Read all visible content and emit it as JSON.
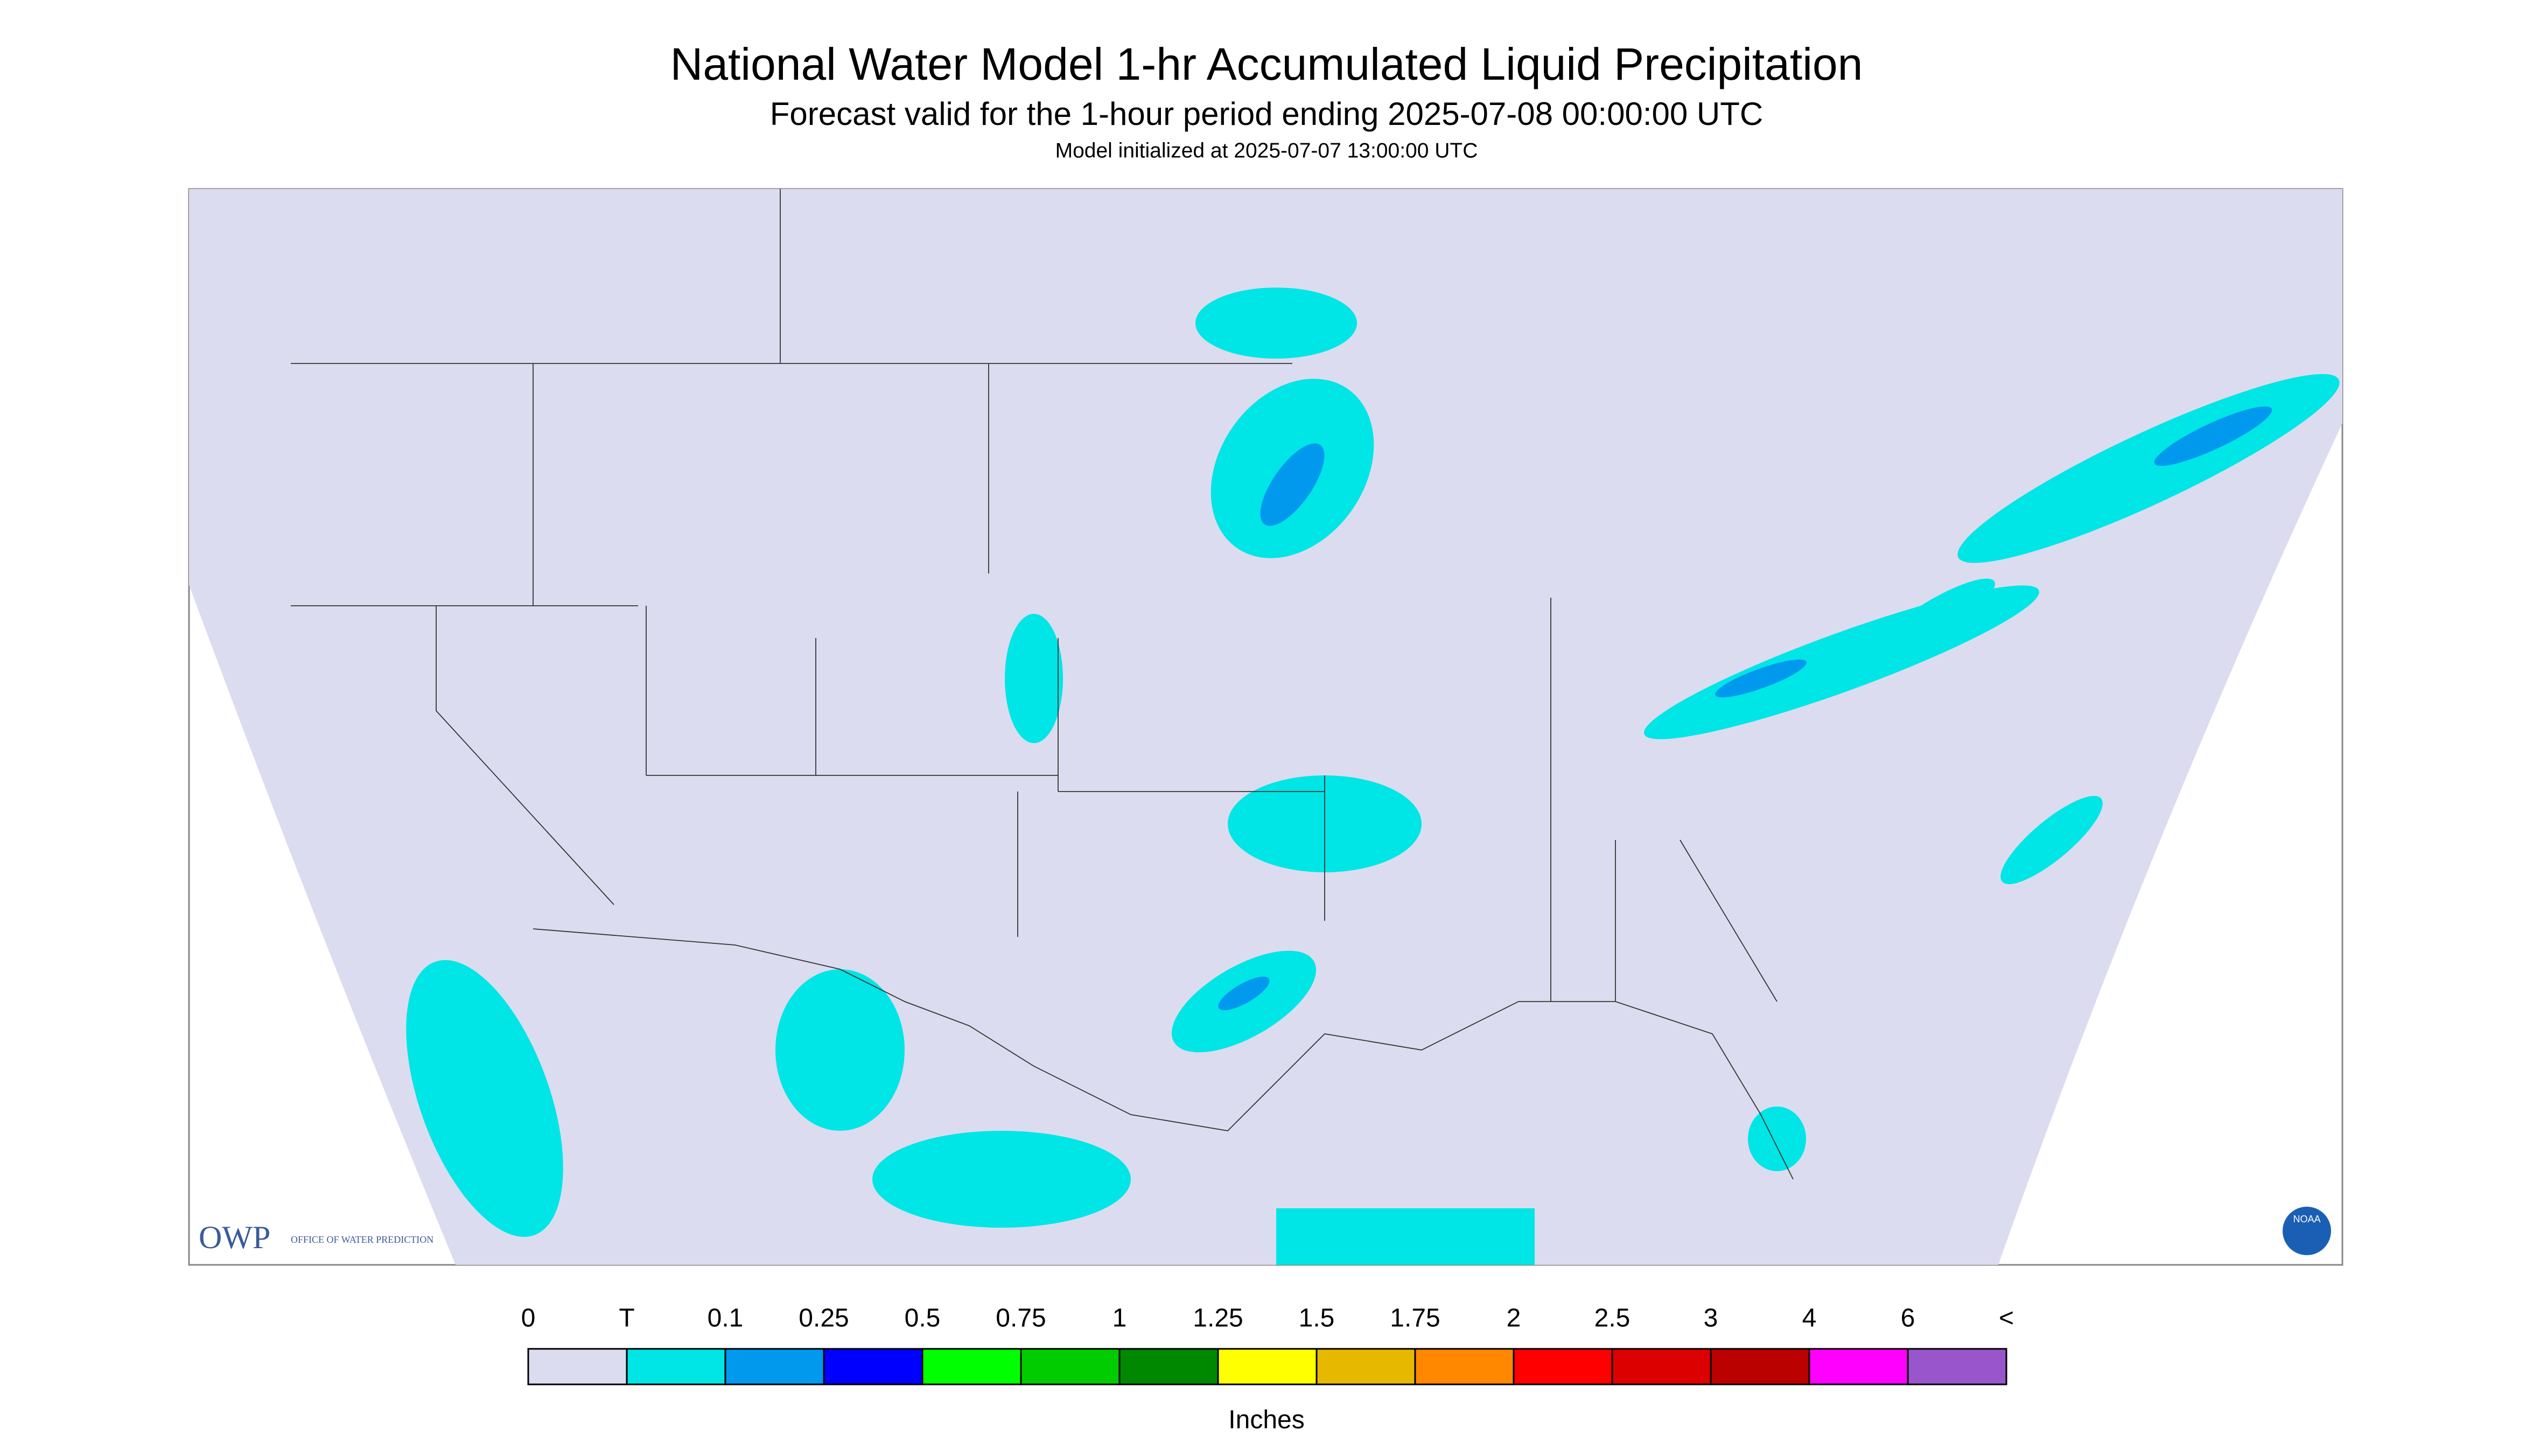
{
  "header": {
    "title": "National Water Model 1-hr Accumulated Liquid Precipitation",
    "subtitle": "Forecast valid for the 1-hour period ending 2025-07-08 00:00:00 UTC",
    "initialized": "Model initialized at 2025-07-07 13:00:00 UTC"
  },
  "logos": {
    "owp": "OWP",
    "owp_full": "OFFICE OF WATER PREDICTION",
    "noaa": "NOAA"
  },
  "legend": {
    "labels": [
      "0",
      "T",
      "0.1",
      "0.25",
      "0.5",
      "0.75",
      "1",
      "1.25",
      "1.5",
      "1.75",
      "2",
      "2.5",
      "3",
      "4",
      "6",
      "<"
    ],
    "colors": [
      "#dcdcf0",
      "#00e5e5",
      "#0099ee",
      "#0000ff",
      "#00ff00",
      "#00cc00",
      "#008800",
      "#ffff00",
      "#e6b800",
      "#ff8800",
      "#ff0000",
      "#dd0000",
      "#bb0000",
      "#ff00ff",
      "#9955cc"
    ],
    "units": "Inches"
  }
}
